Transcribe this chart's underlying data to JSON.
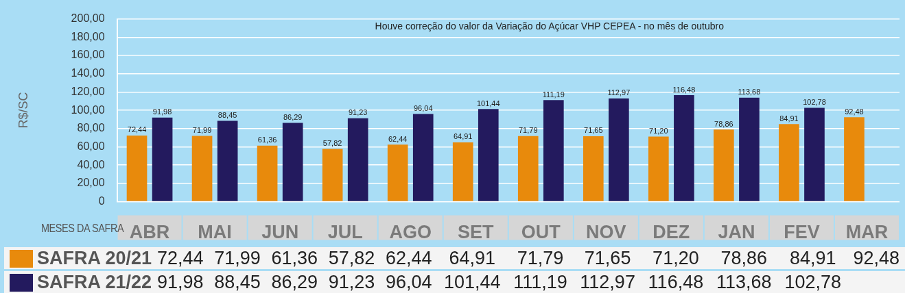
{
  "chart_data": {
    "type": "bar",
    "ylabel": "R$/SC",
    "xlabel": "MESES DA SAFRA",
    "annotations": [
      "Houve correção do valor da Variação do Açúcar VHP CEPEA - no mês de outubro"
    ],
    "categories": [
      "ABR",
      "MAI",
      "JUN",
      "JUL",
      "AGO",
      "SET",
      "OUT",
      "NOV",
      "DEZ",
      "JAN",
      "FEV",
      "MAR"
    ],
    "series": [
      {
        "name": "SAFRA 20/21",
        "color": "#e88a0c",
        "values": [
          72.44,
          71.99,
          61.36,
          57.82,
          62.44,
          64.91,
          71.79,
          71.65,
          71.2,
          78.86,
          84.91,
          92.48
        ],
        "value_labels": [
          "72,44",
          "71,99",
          "61,36",
          "57,82",
          "62,44",
          "64,91",
          "71,79",
          "71,65",
          "71,20",
          "78,86",
          "84,91",
          "92,48"
        ]
      },
      {
        "name": "SAFRA 21/22",
        "color": "#231a5e",
        "values": [
          91.98,
          88.45,
          86.29,
          91.23,
          96.04,
          101.44,
          111.19,
          112.97,
          116.48,
          113.68,
          102.78,
          null
        ],
        "value_labels": [
          "91,98",
          "88,45",
          "86,29",
          "91,23",
          "96,04",
          "101,44",
          "111,19",
          "112,97",
          "116,48",
          "113,68",
          "102,78",
          null
        ]
      }
    ],
    "ylim": [
      0,
      200
    ],
    "yticks": [
      0,
      {
        "value": 20,
        "label": "20,00"
      },
      {
        "value": 40,
        "label": "40,00"
      },
      {
        "value": 60,
        "label": "60,00"
      },
      {
        "value": 80,
        "label": "80,00"
      },
      {
        "value": 100,
        "label": "100,00"
      },
      {
        "value": 120,
        "label": "120,00"
      },
      {
        "value": 140,
        "label": "140,00"
      },
      {
        "value": 160,
        "label": "160,00"
      },
      {
        "value": 180,
        "label": "180,00"
      },
      {
        "value": 200,
        "label": "200,00"
      }
    ],
    "grid": "y",
    "legend": "bottom"
  }
}
